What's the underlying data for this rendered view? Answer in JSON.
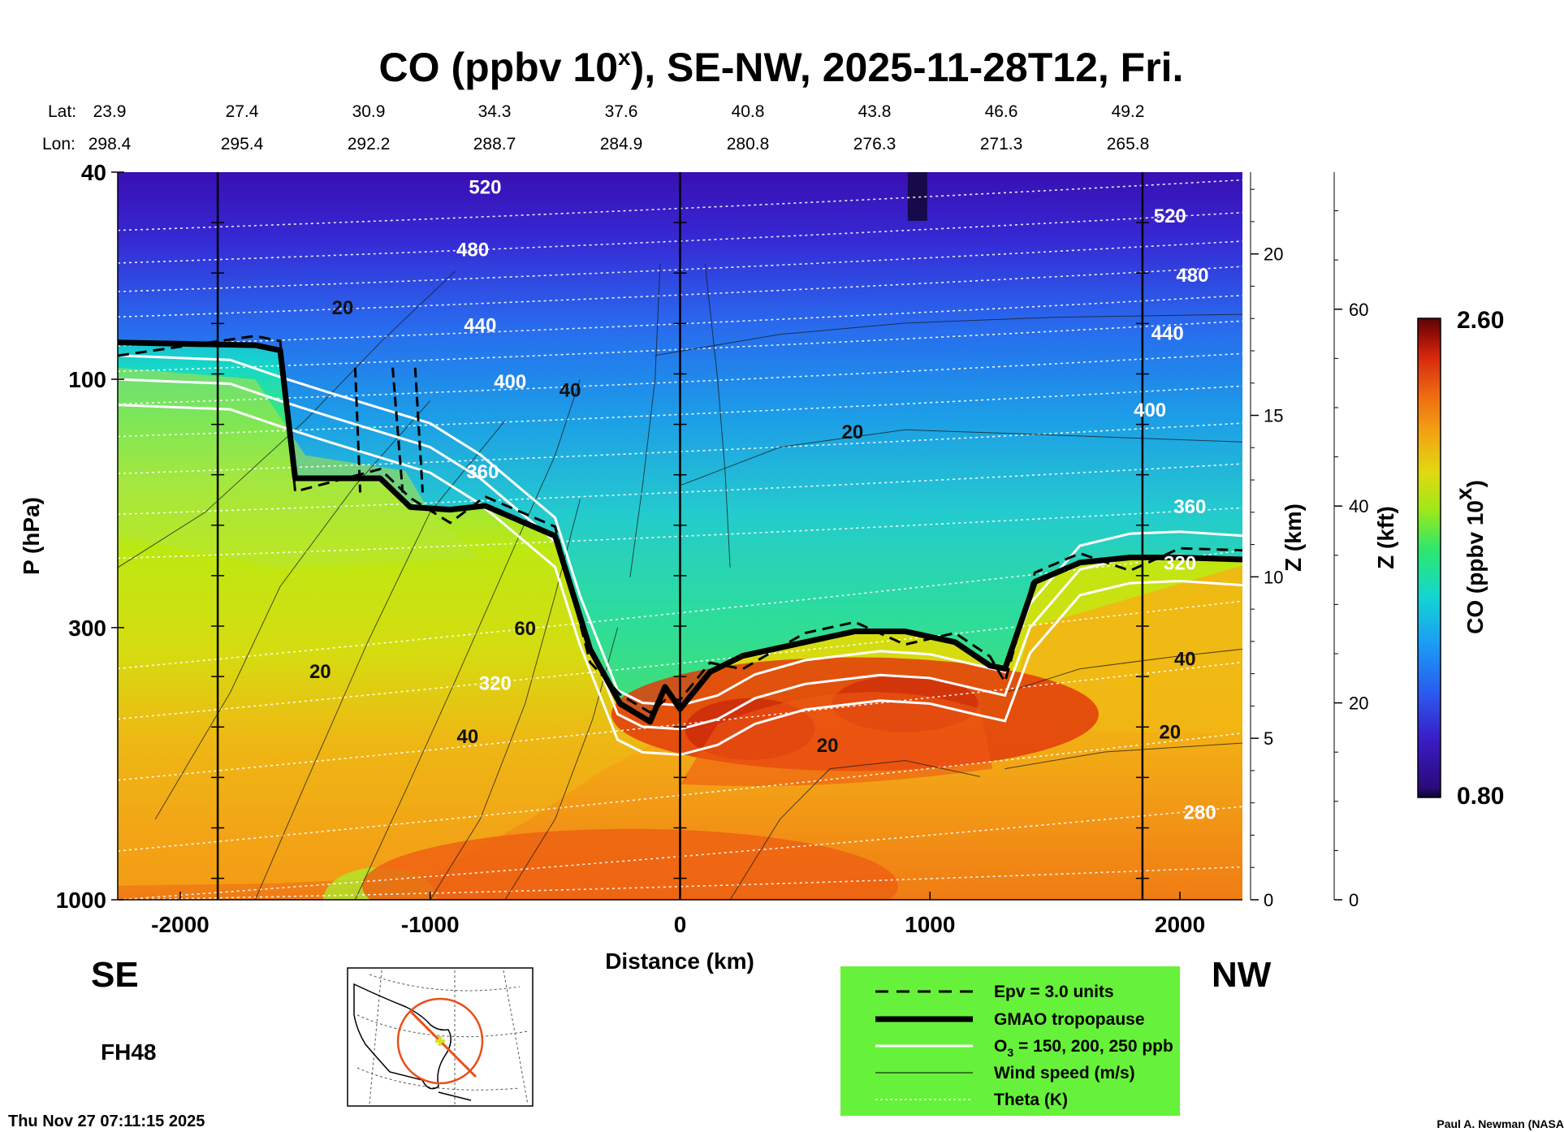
{
  "header": {
    "title_main": "CO (ppbv 10",
    "title_sup": "x",
    "title_rest": "), SE-NW, 2025-11-28T12, Fri.",
    "lat_label": "Lat:",
    "lon_label": "Lon:",
    "lats": [
      "23.9",
      "27.4",
      "30.9",
      "34.3",
      "37.6",
      "40.8",
      "43.8",
      "46.6",
      "49.2"
    ],
    "lons": [
      "298.4",
      "295.4",
      "292.2",
      "288.7",
      "284.9",
      "280.8",
      "276.3",
      "271.3",
      "265.8"
    ]
  },
  "chart_data": {
    "type": "heatmap",
    "variable": "CO (ppbv 10x)",
    "xlabel": "Distance (km)",
    "ylabel": "P (hPa)",
    "y2label": "Z (km)",
    "y3label": "Z (kft)",
    "xlim": [
      -2250,
      2250
    ],
    "ylim": [
      1000,
      40
    ],
    "y_scale": "log",
    "x_ticks": [
      -2000,
      -1000,
      0,
      1000,
      2000
    ],
    "x_tick_labels": [
      "-2000",
      "-1000",
      "0",
      "1000",
      "2000"
    ],
    "y_ticks": [
      40,
      100,
      300,
      1000
    ],
    "y_tick_labels": [
      "40",
      "100",
      "300",
      "1000"
    ],
    "z_km_ticks": [
      0,
      5,
      10,
      15,
      20
    ],
    "z_km_labels": [
      "0",
      "5",
      "10",
      "15",
      "20"
    ],
    "z_kft_ticks": [
      0,
      20,
      40,
      60
    ],
    "z_kft_labels": [
      "0",
      "20",
      "40",
      "60"
    ],
    "colorbar": {
      "label": "CO (ppbv 10",
      "label_sup": "x",
      "label_end": ")",
      "min": 0.8,
      "max": 2.6,
      "min_label": "0.80",
      "max_label": "2.60"
    },
    "colors": {
      "high": "#e83a0a",
      "mid": "#bde812",
      "low": "#1fd7c4",
      "top": "#3e10b8"
    },
    "vertical_markers_km": [
      -1850,
      0,
      1850
    ],
    "tropopause": {
      "x": [
        -2250,
        -1700,
        -1600,
        -1540,
        -1200,
        -1080,
        -920,
        -780,
        -500,
        -360,
        -240,
        -120,
        -60,
        0,
        120,
        250,
        500,
        700,
        900,
        1100,
        1240,
        1300,
        1420,
        1600,
        1800,
        2000,
        2250
      ],
      "p": [
        85,
        86,
        88,
        155,
        155,
        176,
        178,
        175,
        200,
        330,
        420,
        455,
        390,
        430,
        365,
        340,
        320,
        305,
        305,
        320,
        355,
        360,
        245,
        225,
        220,
        220,
        222
      ]
    },
    "ozone_150": {
      "x": [
        -2250,
        -1800,
        -1600,
        -1400,
        -1000,
        -800,
        -500,
        -400,
        -250,
        -150,
        0,
        150,
        300,
        500,
        800,
        1000,
        1200,
        1300,
        1400,
        1600,
        1800,
        2000,
        2250
      ],
      "p": [
        100,
        102,
        110,
        118,
        135,
        155,
        205,
        290,
        440,
        465,
        470,
        450,
        410,
        385,
        370,
        375,
        395,
        405,
        300,
        232,
        220,
        218,
        222
      ]
    },
    "theta_labels": [
      {
        "x": -780,
        "p": 44,
        "text": "520"
      },
      {
        "x": 1960,
        "p": 50,
        "text": "520"
      },
      {
        "x": -830,
        "p": 58,
        "text": "480"
      },
      {
        "x": 2050,
        "p": 65,
        "text": "480"
      },
      {
        "x": -800,
        "p": 81,
        "text": "440"
      },
      {
        "x": 1950,
        "p": 84,
        "text": "440"
      },
      {
        "x": -680,
        "p": 104,
        "text": "400"
      },
      {
        "x": 1880,
        "p": 118,
        "text": "400"
      },
      {
        "x": -790,
        "p": 155,
        "text": "360"
      },
      {
        "x": 2040,
        "p": 181,
        "text": "360"
      },
      {
        "x": -740,
        "p": 395,
        "text": "320"
      },
      {
        "x": 2000,
        "p": 232,
        "text": "320"
      },
      {
        "x": 2080,
        "p": 700,
        "text": "280"
      }
    ],
    "wind_labels": [
      {
        "x": -1350,
        "p": 75,
        "text": "20"
      },
      {
        "x": -440,
        "p": 108,
        "text": "40"
      },
      {
        "x": 690,
        "p": 130,
        "text": "20"
      },
      {
        "x": -620,
        "p": 310,
        "text": "60"
      },
      {
        "x": -1440,
        "p": 375,
        "text": "20"
      },
      {
        "x": -850,
        "p": 500,
        "text": "40"
      },
      {
        "x": 590,
        "p": 520,
        "text": "20"
      },
      {
        "x": 2020,
        "p": 355,
        "text": "40"
      },
      {
        "x": 1960,
        "p": 490,
        "text": "20"
      }
    ]
  },
  "labels": {
    "se": "SE",
    "nw": "NW",
    "fh": "FH48",
    "timestamp": "Thu Nov 27 07:11:15 2025",
    "credit": "Paul A. Newman (NASA"
  },
  "legend": {
    "bg_color": "#66f23a",
    "items": [
      {
        "label": "Epv = 3.0 units"
      },
      {
        "label": "GMAO tropopause"
      },
      {
        "label_main": "O",
        "label_sub": "3",
        "label_rest": " = 150, 200, 250 ppb"
      },
      {
        "label": "Wind speed (m/s)"
      },
      {
        "label": "Theta (K)"
      }
    ]
  }
}
